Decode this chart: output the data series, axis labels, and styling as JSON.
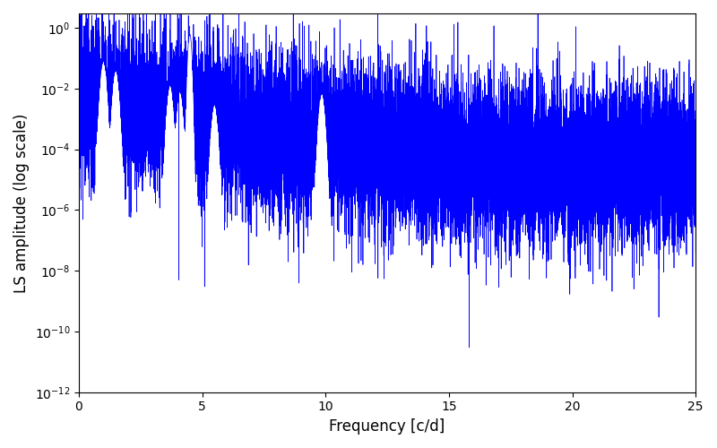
{
  "xlabel": "Frequency [c/d]",
  "ylabel": "LS amplitude (log scale)",
  "line_color": "#0000ff",
  "line_width": 0.5,
  "xlim": [
    0,
    25
  ],
  "ylim": [
    1e-12,
    3.0
  ],
  "figsize": [
    8.0,
    5.0
  ],
  "dpi": 100,
  "seed": 2023,
  "n_points": 15000,
  "freq_max": 25.0,
  "background_color": "#ffffff",
  "log_noise_std": 1.3,
  "envelope_scale": 0.005,
  "envelope_decay": 0.35,
  "noise_floor": 3e-05,
  "peak_main_freq": 4.5,
  "peak_main_amp": 0.62,
  "peak_secondary_freqs": [
    3.7,
    4.1,
    9.85,
    1.0,
    1.5,
    5.5
  ],
  "peak_secondary_amps": [
    0.013,
    0.008,
    0.007,
    0.08,
    0.04,
    0.003
  ],
  "deep_dip_freq": 15.82,
  "deep_dip_val": 3e-11,
  "dip2_freq": 4.05,
  "dip2_val": 5e-09,
  "label_fontsize": 12
}
